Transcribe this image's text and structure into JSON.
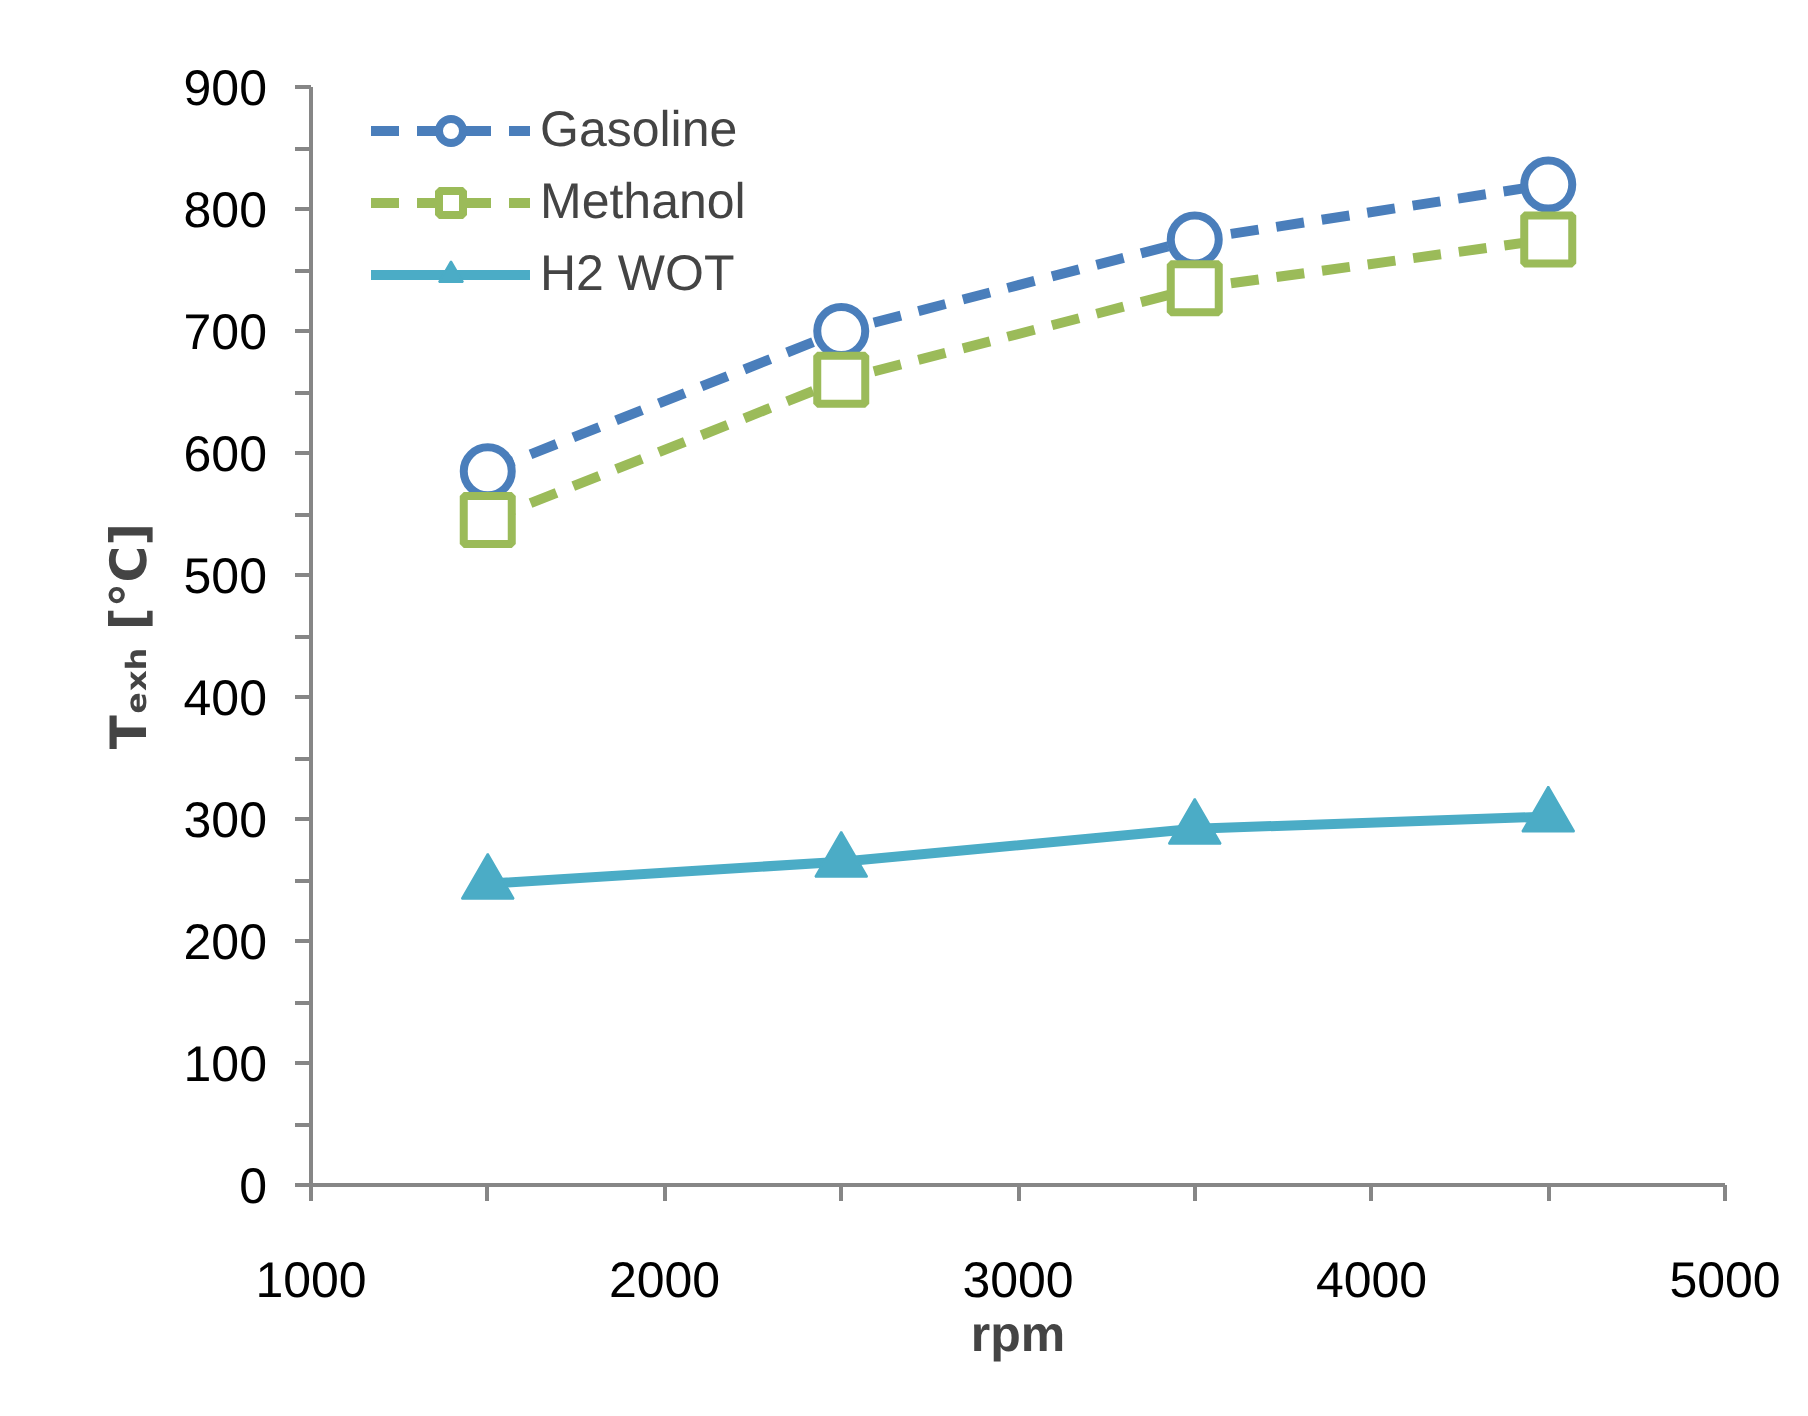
{
  "chart_data": {
    "type": "line",
    "xlabel": "rpm",
    "ylabel": "Tₑₓₕ [°C]",
    "x": [
      1500,
      2500,
      3500,
      4500
    ],
    "series": [
      {
        "name": "Gasoline",
        "color": "#4a7ebb",
        "values": [
          585,
          700,
          775,
          820
        ],
        "marker": "circle",
        "line_style": "dashed"
      },
      {
        "name": "Methanol",
        "color": "#9bbb59",
        "values": [
          545,
          660,
          735,
          775
        ],
        "marker": "square",
        "line_style": "dashed"
      },
      {
        "name": "H2 WOT",
        "color": "#4bacc6",
        "values": [
          247,
          265,
          292,
          302
        ],
        "marker": "triangle",
        "line_style": "solid"
      }
    ],
    "xlim": [
      1000,
      5000
    ],
    "xticks": [
      1000,
      {
        "value": 1500,
        "label": null
      },
      2000,
      {
        "value": 2500,
        "label": null
      },
      3000,
      {
        "value": 3500,
        "label": null
      },
      4000,
      {
        "value": 4500,
        "label": null
      },
      5000
    ],
    "ylim": [
      0,
      900
    ],
    "yticks": [
      0,
      {
        "value": 50,
        "label": null
      },
      100,
      {
        "value": 150,
        "label": null
      },
      200,
      {
        "value": 250,
        "label": null
      },
      300,
      {
        "value": 350,
        "label": null
      },
      400,
      {
        "value": 450,
        "label": null
      },
      500,
      {
        "value": 550,
        "label": null
      },
      600,
      {
        "value": 650,
        "label": null
      },
      700,
      {
        "value": 750,
        "label": null
      },
      800,
      {
        "value": 850,
        "label": null
      },
      900
    ],
    "grid": false,
    "legend": "top left"
  }
}
